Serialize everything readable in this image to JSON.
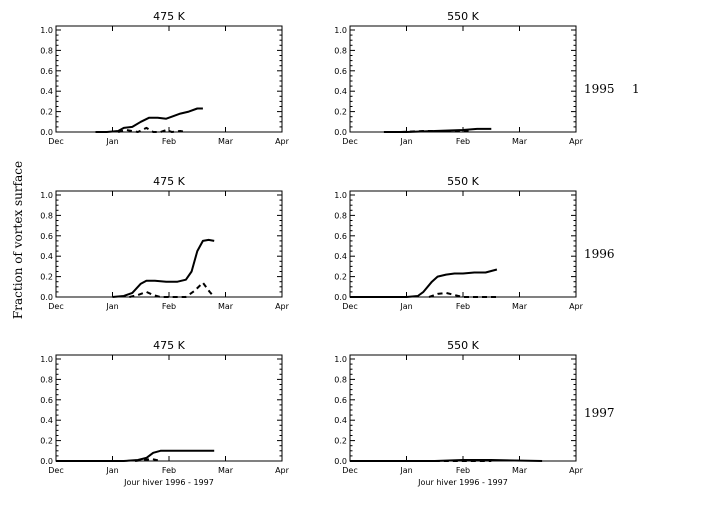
{
  "figure": {
    "ylabel": "Fraction of vortex surface",
    "row_labels": [
      "1995",
      "1996",
      "1997"
    ],
    "corner_label": "1"
  },
  "chart_data": [
    {
      "type": "line",
      "row": 0,
      "col": 0,
      "title": "475 K",
      "xlabel": "",
      "x_ticks": [
        "Dec",
        "Jan",
        "Feb",
        "Mar",
        "Apr"
      ],
      "y_ticks": [
        "0.0",
        "0.2",
        "0.4",
        "0.6",
        "0.8",
        "1.0"
      ],
      "xlim": [
        0,
        4
      ],
      "ylim": [
        0,
        1
      ],
      "series": [
        {
          "style": "solid",
          "x": [
            0.7,
            0.9,
            1.1,
            1.2,
            1.35,
            1.5,
            1.65,
            1.8,
            1.95,
            2.05,
            2.2,
            2.35,
            2.5,
            2.6
          ],
          "y": [
            0.0,
            0.0,
            0.01,
            0.04,
            0.05,
            0.1,
            0.14,
            0.14,
            0.13,
            0.15,
            0.18,
            0.2,
            0.23,
            0.23
          ]
        },
        {
          "style": "dashed",
          "x": [
            1.1,
            1.25,
            1.45,
            1.6,
            1.72,
            1.85,
            1.95,
            2.05,
            2.2,
            2.3
          ],
          "y": [
            0.0,
            0.02,
            0.0,
            0.04,
            0.0,
            0.0,
            0.02,
            0.0,
            0.01,
            0.0
          ]
        }
      ]
    },
    {
      "type": "line",
      "row": 0,
      "col": 1,
      "title": "550 K",
      "xlabel": "",
      "x_ticks": [
        "Dec",
        "Jan",
        "Feb",
        "Mar",
        "Apr"
      ],
      "y_ticks": [
        "0.0",
        "0.2",
        "0.4",
        "0.6",
        "0.8",
        "1.0"
      ],
      "xlim": [
        0,
        4
      ],
      "ylim": [
        0,
        1
      ],
      "series": [
        {
          "style": "solid",
          "x": [
            0.6,
            1.0,
            1.5,
            2.0,
            2.25,
            2.5
          ],
          "y": [
            0.0,
            0.0,
            0.01,
            0.02,
            0.03,
            0.03
          ]
        },
        {
          "style": "dashed",
          "x": [
            0.9,
            1.3,
            1.7,
            2.1
          ],
          "y": [
            0.0,
            0.01,
            0.01,
            0.01
          ]
        }
      ]
    },
    {
      "type": "line",
      "row": 1,
      "col": 0,
      "title": "475 K",
      "xlabel": "",
      "x_ticks": [
        "Dec",
        "Jan",
        "Feb",
        "Mar",
        "Apr"
      ],
      "y_ticks": [
        "0.0",
        "0.2",
        "0.4",
        "0.6",
        "0.8",
        "1.0"
      ],
      "xlim": [
        0,
        4
      ],
      "ylim": [
        0,
        1
      ],
      "series": [
        {
          "style": "solid",
          "x": [
            1.0,
            1.2,
            1.35,
            1.5,
            1.6,
            1.75,
            1.95,
            2.15,
            2.3,
            2.4,
            2.5,
            2.6,
            2.7,
            2.8
          ],
          "y": [
            0.0,
            0.01,
            0.04,
            0.13,
            0.16,
            0.16,
            0.15,
            0.15,
            0.17,
            0.25,
            0.45,
            0.55,
            0.56,
            0.55
          ]
        },
        {
          "style": "dashed",
          "x": [
            1.3,
            1.45,
            1.6,
            1.72,
            1.85,
            2.3,
            2.45,
            2.6,
            2.72,
            2.8
          ],
          "y": [
            0.0,
            0.02,
            0.05,
            0.02,
            0.0,
            0.0,
            0.06,
            0.14,
            0.05,
            0.0
          ]
        }
      ]
    },
    {
      "type": "line",
      "row": 1,
      "col": 1,
      "title": "550 K",
      "xlabel": "",
      "x_ticks": [
        "Dec",
        "Jan",
        "Feb",
        "Mar",
        "Apr"
      ],
      "y_ticks": [
        "0.0",
        "0.2",
        "0.4",
        "0.6",
        "0.8",
        "1.0"
      ],
      "xlim": [
        0,
        4
      ],
      "ylim": [
        0,
        1
      ],
      "series": [
        {
          "style": "solid",
          "x": [
            0.0,
            0.5,
            1.0,
            1.2,
            1.3,
            1.45,
            1.55,
            1.7,
            1.85,
            2.0,
            2.2,
            2.4,
            2.6
          ],
          "y": [
            0.0,
            0.0,
            0.0,
            0.01,
            0.05,
            0.15,
            0.2,
            0.22,
            0.23,
            0.23,
            0.24,
            0.24,
            0.27
          ]
        },
        {
          "style": "dashed",
          "x": [
            1.4,
            1.55,
            1.7,
            1.85,
            2.0,
            2.4,
            2.6
          ],
          "y": [
            0.0,
            0.03,
            0.04,
            0.02,
            0.0,
            0.0,
            0.0
          ]
        }
      ]
    },
    {
      "type": "line",
      "row": 2,
      "col": 0,
      "title": "475 K",
      "xlabel": "Jour hiver 1996 - 1997",
      "x_ticks": [
        "Dec",
        "Jan",
        "Feb",
        "Mar",
        "Apr"
      ],
      "y_ticks": [
        "0.0",
        "0.2",
        "0.4",
        "0.6",
        "0.8",
        "1.0"
      ],
      "xlim": [
        0,
        4
      ],
      "ylim": [
        0,
        1
      ],
      "series": [
        {
          "style": "solid",
          "x": [
            0.0,
            1.2,
            1.45,
            1.6,
            1.72,
            1.85,
            2.0,
            2.4,
            2.8
          ],
          "y": [
            0.0,
            0.0,
            0.01,
            0.03,
            0.08,
            0.1,
            0.1,
            0.1,
            0.1
          ]
        },
        {
          "style": "dashed",
          "x": [
            1.4,
            1.55,
            1.7,
            1.85
          ],
          "y": [
            0.0,
            0.01,
            0.02,
            0.0
          ]
        }
      ]
    },
    {
      "type": "line",
      "row": 2,
      "col": 1,
      "title": "550 K",
      "xlabel": "Jour hiver 1996 - 1997",
      "x_ticks": [
        "Dec",
        "Jan",
        "Feb",
        "Mar",
        "Apr"
      ],
      "y_ticks": [
        "0.0",
        "0.2",
        "0.4",
        "0.6",
        "0.8",
        "1.0"
      ],
      "xlim": [
        0,
        4
      ],
      "ylim": [
        0,
        1
      ],
      "series": [
        {
          "style": "solid",
          "x": [
            0.0,
            1.0,
            1.5,
            2.0,
            2.5,
            3.4
          ],
          "y": [
            0.0,
            0.0,
            0.0,
            0.01,
            0.01,
            0.0
          ]
        },
        {
          "style": "dashed",
          "x": [
            1.5,
            2.0,
            2.5
          ],
          "y": [
            0.0,
            0.0,
            0.0
          ]
        }
      ]
    }
  ]
}
